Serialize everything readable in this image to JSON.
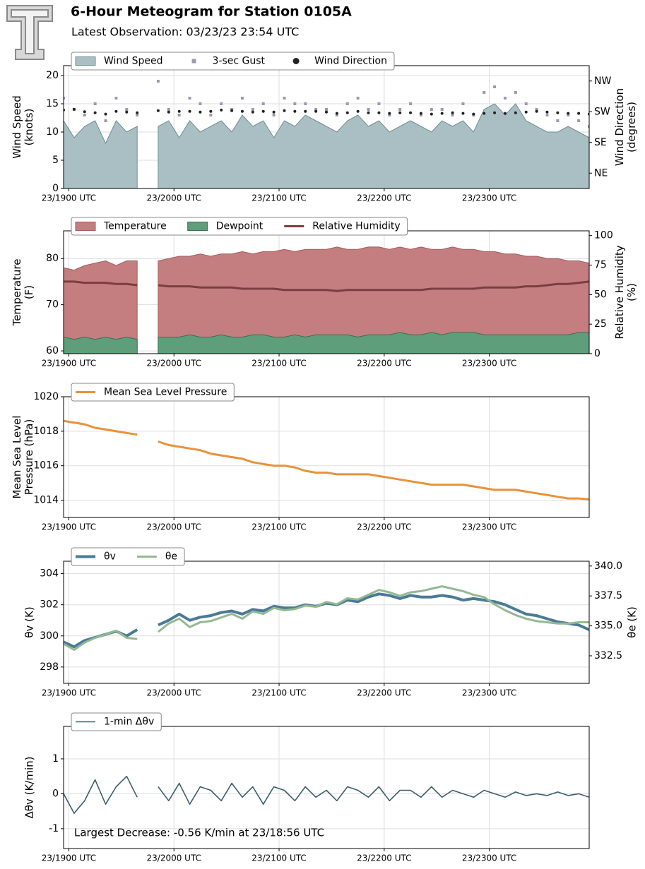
{
  "header": {
    "title": "6-Hour Meteogram for Station 0105A",
    "subtitle": "Latest Observation: 03/23/23 23:54 UTC"
  },
  "chart_data": [
    {
      "type": "line",
      "ylabel": [
        "Wind Speed",
        "(knots)"
      ],
      "y2label": [
        "Wind Direction",
        "(degrees)"
      ],
      "x": [
        18.95,
        19.05,
        19.15,
        19.25,
        19.35,
        19.45,
        19.55,
        19.65,
        19.75,
        19.85,
        19.95,
        20.05,
        20.15,
        20.25,
        20.35,
        20.45,
        20.55,
        20.65,
        20.75,
        20.85,
        20.95,
        21.05,
        21.15,
        21.25,
        21.35,
        21.45,
        21.55,
        21.65,
        21.75,
        21.85,
        21.95,
        22.05,
        22.15,
        22.25,
        22.35,
        22.45,
        22.55,
        22.65,
        22.75,
        22.85,
        22.95,
        23.05,
        23.15,
        23.25,
        23.35,
        23.45,
        23.55,
        23.65,
        23.75,
        23.85,
        23.95
      ],
      "xlim": [
        18.95,
        23.95
      ],
      "xticks": [
        {
          "value": 19,
          "label": "23/1900 UTC"
        },
        {
          "value": 20,
          "label": "23/2000 UTC"
        },
        {
          "value": 21,
          "label": "23/2100 UTC"
        },
        {
          "value": 22,
          "label": "23/2200 UTC"
        },
        {
          "value": 23,
          "label": "23/2300 UTC"
        }
      ],
      "ylim": [
        0,
        21.75
      ],
      "yticks": [
        0,
        5,
        10,
        15,
        20
      ],
      "y2lim": [
        0,
        360
      ],
      "y2ticks": [
        {
          "value": 45,
          "label": "NE"
        },
        {
          "value": 135,
          "label": "SE"
        },
        {
          "value": 225,
          "label": "SW"
        },
        {
          "value": 315,
          "label": "NW"
        }
      ],
      "grid": true,
      "legend": "upper left",
      "series": [
        {
          "name": "Wind Speed",
          "type": "area",
          "color": "#a9bfc4",
          "edge": "#6f8f94",
          "values": [
            12,
            9,
            11,
            12,
            8,
            12,
            10,
            11,
            null,
            11,
            12,
            9,
            12,
            10,
            11,
            12,
            10,
            13,
            11,
            12,
            9,
            12,
            11,
            13,
            12,
            11,
            10,
            12,
            13,
            11,
            12,
            10,
            11,
            12,
            11,
            10,
            12,
            11,
            12,
            10,
            14,
            15,
            13,
            15,
            12,
            11,
            10,
            10,
            11,
            10,
            9
          ]
        },
        {
          "name": "3-sec Gust",
          "type": "scatter",
          "marker": "square",
          "color": "#9a9ab0",
          "values": [
            16,
            14,
            13,
            15,
            12,
            16,
            14,
            13,
            null,
            19,
            14,
            13,
            16,
            15,
            13,
            15,
            14,
            16,
            14,
            15,
            13,
            16,
            15,
            15,
            14,
            14,
            13,
            15,
            16,
            14,
            15,
            13,
            14,
            15,
            13,
            14,
            14,
            13,
            15,
            13,
            17,
            18,
            16,
            17,
            15,
            14,
            13,
            12,
            13,
            12,
            11
          ]
        },
        {
          "name": "Wind Direction",
          "type": "scatter",
          "marker": "circle",
          "color": "#222222",
          "axis": "y2",
          "values": [
            230,
            232,
            225,
            222,
            218,
            226,
            224,
            222,
            null,
            228,
            224,
            226,
            226,
            224,
            226,
            230,
            228,
            226,
            224,
            226,
            224,
            228,
            226,
            226,
            226,
            224,
            220,
            222,
            226,
            222,
            222,
            220,
            222,
            222,
            220,
            218,
            220,
            222,
            220,
            218,
            220,
            222,
            220,
            222,
            224,
            226,
            224,
            222,
            220,
            220,
            218
          ]
        }
      ]
    },
    {
      "type": "line",
      "ylabel": [
        "Temperature",
        "(F)"
      ],
      "y2label": [
        "Relative Humidity",
        "(%)"
      ],
      "x": [
        18.95,
        19.05,
        19.15,
        19.25,
        19.35,
        19.45,
        19.55,
        19.65,
        19.75,
        19.85,
        19.95,
        20.05,
        20.15,
        20.25,
        20.35,
        20.45,
        20.55,
        20.65,
        20.75,
        20.85,
        20.95,
        21.05,
        21.15,
        21.25,
        21.35,
        21.45,
        21.55,
        21.65,
        21.75,
        21.85,
        21.95,
        22.05,
        22.15,
        22.25,
        22.35,
        22.45,
        22.55,
        22.65,
        22.75,
        22.85,
        22.95,
        23.05,
        23.15,
        23.25,
        23.35,
        23.45,
        23.55,
        23.65,
        23.75,
        23.85,
        23.95
      ],
      "xlim": [
        18.95,
        23.95
      ],
      "xticks": [
        {
          "value": 19,
          "label": "23/1900 UTC"
        },
        {
          "value": 20,
          "label": "23/2000 UTC"
        },
        {
          "value": 21,
          "label": "23/2100 UTC"
        },
        {
          "value": 22,
          "label": "23/2200 UTC"
        },
        {
          "value": 23,
          "label": "23/2300 UTC"
        }
      ],
      "ylim": [
        59.4,
        86
      ],
      "yticks": [
        60,
        70,
        80
      ],
      "y2lim": [
        0,
        104
      ],
      "y2ticks": [
        0,
        25,
        50,
        75,
        100
      ],
      "grid": true,
      "legend": "upper left",
      "series": [
        {
          "name": "Temperature",
          "type": "area",
          "color": "#c47e80",
          "edge": "#a55c5e",
          "values": [
            78,
            77.5,
            78.5,
            79,
            79.5,
            78.5,
            79.5,
            79.5,
            null,
            79.5,
            80,
            80.5,
            80.5,
            81,
            80.5,
            81,
            81,
            81.5,
            81,
            81.5,
            81.5,
            82,
            81.5,
            82,
            82,
            82,
            82.5,
            82,
            82,
            82.5,
            82.5,
            82,
            82.5,
            82,
            82.5,
            82,
            82,
            82.5,
            82,
            82,
            81.5,
            81.5,
            81,
            81,
            80.5,
            80.5,
            80,
            80,
            79.5,
            79.5,
            79
          ]
        },
        {
          "name": "Dewpoint",
          "type": "area",
          "color": "#5e9e7a",
          "edge": "#3d6e52",
          "values": [
            63,
            62.5,
            63,
            62.5,
            63,
            62.5,
            63,
            62.5,
            null,
            63,
            63,
            63,
            63.5,
            63,
            63,
            63.5,
            63,
            63,
            63.5,
            63.5,
            63,
            63,
            63.5,
            63,
            63.5,
            63.5,
            63.5,
            63.5,
            63,
            63.5,
            63.5,
            63.5,
            64,
            63.5,
            63.5,
            64,
            63.5,
            64,
            64,
            64,
            63.5,
            63.5,
            63.5,
            63.5,
            63.5,
            63.5,
            63.5,
            63.5,
            63.5,
            64,
            64
          ]
        },
        {
          "name": "Relative Humidity",
          "type": "line",
          "color": "#7b3e40",
          "axis": "y2",
          "values": [
            61,
            61,
            60,
            60,
            60,
            59,
            59,
            58,
            null,
            58,
            57,
            57,
            57,
            56,
            56,
            56,
            56,
            55,
            55,
            55,
            55,
            54,
            54,
            54,
            54,
            54,
            53,
            54,
            54,
            54,
            54,
            54,
            54,
            54,
            54,
            55,
            55,
            55,
            55,
            55,
            56,
            56,
            56,
            56,
            57,
            57,
            58,
            59,
            59,
            60,
            61
          ]
        }
      ]
    },
    {
      "type": "line",
      "ylabel": [
        "Mean Sea Level",
        "Pressure (hPa)"
      ],
      "x": [
        18.95,
        19.05,
        19.15,
        19.25,
        19.35,
        19.45,
        19.55,
        19.65,
        19.75,
        19.85,
        19.95,
        20.05,
        20.15,
        20.25,
        20.35,
        20.45,
        20.55,
        20.65,
        20.75,
        20.85,
        20.95,
        21.05,
        21.15,
        21.25,
        21.35,
        21.45,
        21.55,
        21.65,
        21.75,
        21.85,
        21.95,
        22.05,
        22.15,
        22.25,
        22.35,
        22.45,
        22.55,
        22.65,
        22.75,
        22.85,
        22.95,
        23.05,
        23.15,
        23.25,
        23.35,
        23.45,
        23.55,
        23.65,
        23.75,
        23.85,
        23.95
      ],
      "xlim": [
        18.95,
        23.95
      ],
      "xticks": [
        {
          "value": 19,
          "label": "23/1900 UTC"
        },
        {
          "value": 20,
          "label": "23/2000 UTC"
        },
        {
          "value": 21,
          "label": "23/2100 UTC"
        },
        {
          "value": 22,
          "label": "23/2200 UTC"
        },
        {
          "value": 23,
          "label": "23/2300 UTC"
        }
      ],
      "ylim": [
        1013,
        1020
      ],
      "yticks": [
        1014,
        1016,
        1018,
        1020
      ],
      "grid": true,
      "legend": "upper left",
      "series": [
        {
          "name": "Mean Sea Level Pressure",
          "type": "line",
          "color": "#e8923a",
          "values": [
            1018.6,
            1018.5,
            1018.4,
            1018.2,
            1018.1,
            1018.0,
            1017.9,
            1017.8,
            null,
            1017.4,
            1017.2,
            1017.1,
            1017.0,
            1016.9,
            1016.7,
            1016.6,
            1016.5,
            1016.4,
            1016.2,
            1016.1,
            1016.0,
            1016.0,
            1015.9,
            1015.7,
            1015.6,
            1015.6,
            1015.5,
            1015.5,
            1015.5,
            1015.5,
            1015.4,
            1015.3,
            1015.2,
            1015.1,
            1015.0,
            1014.9,
            1014.9,
            1014.9,
            1014.9,
            1014.8,
            1014.7,
            1014.6,
            1014.6,
            1014.6,
            1014.5,
            1014.4,
            1014.3,
            1014.2,
            1014.1,
            1014.1,
            1014.05
          ]
        }
      ]
    },
    {
      "type": "line",
      "ylabel": [
        "θv (K)"
      ],
      "y2label": [
        "θe (K)"
      ],
      "x": [
        18.95,
        19.05,
        19.15,
        19.25,
        19.35,
        19.45,
        19.55,
        19.65,
        19.75,
        19.85,
        19.95,
        20.05,
        20.15,
        20.25,
        20.35,
        20.45,
        20.55,
        20.65,
        20.75,
        20.85,
        20.95,
        21.05,
        21.15,
        21.25,
        21.35,
        21.45,
        21.55,
        21.65,
        21.75,
        21.85,
        21.95,
        22.05,
        22.15,
        22.25,
        22.35,
        22.45,
        22.55,
        22.65,
        22.75,
        22.85,
        22.95,
        23.05,
        23.15,
        23.25,
        23.35,
        23.45,
        23.55,
        23.65,
        23.75,
        23.85,
        23.95
      ],
      "xlim": [
        18.95,
        23.95
      ],
      "xticks": [
        {
          "value": 19,
          "label": "23/1900 UTC"
        },
        {
          "value": 20,
          "label": "23/2000 UTC"
        },
        {
          "value": 21,
          "label": "23/2100 UTC"
        },
        {
          "value": 22,
          "label": "23/2200 UTC"
        },
        {
          "value": 23,
          "label": "23/2300 UTC"
        }
      ],
      "ylim": [
        296.95,
        304.8
      ],
      "yticks": [
        298,
        300,
        302,
        304
      ],
      "y2lim": [
        330.2,
        340.4
      ],
      "y2ticks": [
        332.5,
        337.5,
        {
          "value": 335,
          "label": "335.0"
        },
        {
          "value": 340,
          "label": "340.0"
        }
      ],
      "grid": true,
      "legend": "upper left",
      "series": [
        {
          "name": "θv",
          "type": "line",
          "color": "#4a7a96",
          "width": 4,
          "values": [
            299.6,
            299.3,
            299.7,
            299.9,
            300.1,
            300.3,
            300.0,
            300.4,
            null,
            300.7,
            301.0,
            301.4,
            301.0,
            301.2,
            301.3,
            301.5,
            301.6,
            301.4,
            301.7,
            301.6,
            301.9,
            301.8,
            301.8,
            302.0,
            301.9,
            302.1,
            302.0,
            302.3,
            302.2,
            302.5,
            302.7,
            302.6,
            302.4,
            302.6,
            302.5,
            302.5,
            302.6,
            302.5,
            302.3,
            302.4,
            302.3,
            302.2,
            302.0,
            301.7,
            301.4,
            301.3,
            301.1,
            300.9,
            300.8,
            300.7,
            300.4
          ]
        },
        {
          "name": "θe",
          "type": "line",
          "color": "#93b991",
          "axis": "y2",
          "width": 3,
          "values": [
            333.5,
            333.0,
            333.6,
            334.0,
            334.3,
            334.6,
            334.0,
            333.9,
            null,
            334.5,
            335.2,
            335.6,
            334.9,
            335.3,
            335.4,
            335.7,
            336.0,
            335.6,
            336.2,
            336.0,
            336.5,
            336.3,
            336.4,
            336.7,
            336.6,
            337.0,
            336.8,
            337.3,
            337.2,
            337.6,
            338.0,
            337.8,
            337.5,
            337.8,
            337.9,
            338.1,
            338.3,
            338.1,
            337.9,
            337.6,
            337.4,
            336.8,
            336.3,
            335.9,
            335.6,
            335.4,
            335.3,
            335.2,
            335.2,
            335.3,
            335.3
          ]
        }
      ]
    },
    {
      "type": "line",
      "ylabel": [
        "Δθv (K/min)"
      ],
      "annotation": "Largest Decrease: -0.56 K/min at 23/18:56 UTC",
      "x": [
        18.95,
        19.05,
        19.15,
        19.25,
        19.35,
        19.45,
        19.55,
        19.65,
        19.75,
        19.85,
        19.95,
        20.05,
        20.15,
        20.25,
        20.35,
        20.45,
        20.55,
        20.65,
        20.75,
        20.85,
        20.95,
        21.05,
        21.15,
        21.25,
        21.35,
        21.45,
        21.55,
        21.65,
        21.75,
        21.85,
        21.95,
        22.05,
        22.15,
        22.25,
        22.35,
        22.45,
        22.55,
        22.65,
        22.75,
        22.85,
        22.95,
        23.05,
        23.15,
        23.25,
        23.35,
        23.45,
        23.55,
        23.65,
        23.75,
        23.85,
        23.95
      ],
      "xlim": [
        18.95,
        23.95
      ],
      "xticks": [
        {
          "value": 19,
          "label": "23/1900 UTC"
        },
        {
          "value": 20,
          "label": "23/2000 UTC"
        },
        {
          "value": 21,
          "label": "23/2100 UTC"
        },
        {
          "value": 22,
          "label": "23/2200 UTC"
        },
        {
          "value": 23,
          "label": "23/2300 UTC"
        }
      ],
      "ylim": [
        -1.57,
        1.93
      ],
      "yticks": [
        -1,
        0,
        1
      ],
      "grid": true,
      "legend": "upper left",
      "series": [
        {
          "name": "1-min Δθv",
          "type": "line",
          "color": "#3b5e6c",
          "width": 1.6,
          "values": [
            0,
            -0.56,
            -0.2,
            0.4,
            -0.3,
            0.2,
            0.5,
            -0.1,
            null,
            0.2,
            -0.2,
            0.3,
            -0.3,
            0.2,
            0.1,
            -0.2,
            0.3,
            -0.1,
            0.2,
            -0.3,
            0.2,
            0.1,
            -0.2,
            0.2,
            -0.1,
            0.1,
            -0.2,
            0.2,
            0.1,
            -0.1,
            0.2,
            -0.2,
            0.1,
            0.1,
            -0.1,
            0.2,
            -0.1,
            0.1,
            0,
            -0.1,
            0.1,
            0,
            -0.1,
            0.05,
            -0.05,
            0,
            -0.05,
            0.05,
            -0.05,
            0,
            -0.1
          ]
        }
      ]
    }
  ]
}
